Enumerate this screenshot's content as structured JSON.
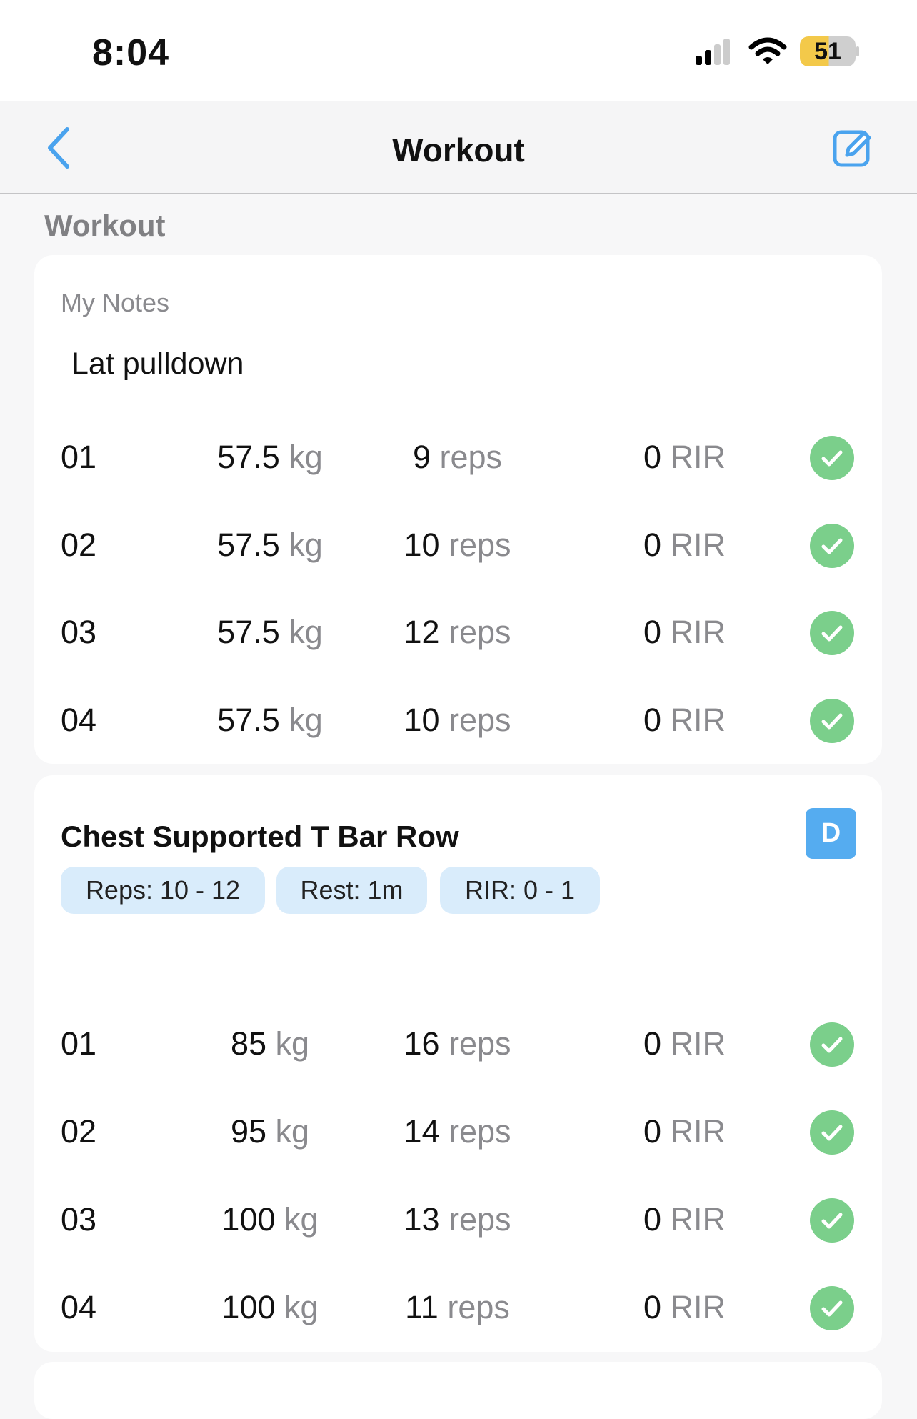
{
  "status_bar": {
    "time": "8:04",
    "battery": "51",
    "battery_color": "#f3c94a"
  },
  "nav": {
    "title": "Workout",
    "back_icon": "chevron-left-icon",
    "edit_icon": "edit-square-icon",
    "accent": "#4aa3ee"
  },
  "section_title": "Workout",
  "card1": {
    "notes_label": "My Notes",
    "notes_value": "Lat pulldown",
    "sets": [
      {
        "set": "01",
        "weight": "57.5",
        "weight_unit": "kg",
        "reps": "9",
        "reps_unit": "reps",
        "rir": "0",
        "rir_unit": "RIR",
        "done": true
      },
      {
        "set": "02",
        "weight": "57.5",
        "weight_unit": "kg",
        "reps": "10",
        "reps_unit": "reps",
        "rir": "0",
        "rir_unit": "RIR",
        "done": true
      },
      {
        "set": "03",
        "weight": "57.5",
        "weight_unit": "kg",
        "reps": "12",
        "reps_unit": "reps",
        "rir": "0",
        "rir_unit": "RIR",
        "done": true
      },
      {
        "set": "04",
        "weight": "57.5",
        "weight_unit": "kg",
        "reps": "10",
        "reps_unit": "reps",
        "rir": "0",
        "rir_unit": "RIR",
        "done": true
      }
    ]
  },
  "card2": {
    "title": "Chest Supported T Bar Row",
    "badge": "D",
    "chips": [
      "Reps: 10 - 12",
      "Rest: 1m",
      "RIR: 0 - 1"
    ],
    "sets": [
      {
        "set": "01",
        "weight": "85",
        "weight_unit": "kg",
        "reps": "16",
        "reps_unit": "reps",
        "rir": "0",
        "rir_unit": "RIR",
        "done": true
      },
      {
        "set": "02",
        "weight": "95",
        "weight_unit": "kg",
        "reps": "14",
        "reps_unit": "reps",
        "rir": "0",
        "rir_unit": "RIR",
        "done": true
      },
      {
        "set": "03",
        "weight": "100",
        "weight_unit": "kg",
        "reps": "13",
        "reps_unit": "reps",
        "rir": "0",
        "rir_unit": "RIR",
        "done": true
      },
      {
        "set": "04",
        "weight": "100",
        "weight_unit": "kg",
        "reps": "11",
        "reps_unit": "reps",
        "rir": "0",
        "rir_unit": "RIR",
        "done": true
      }
    ]
  }
}
